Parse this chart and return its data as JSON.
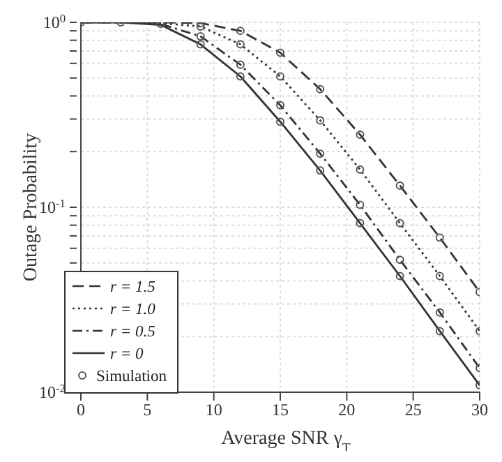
{
  "chart_data": {
    "type": "line",
    "xlabel": "Average SNR γ$_{T}$",
    "ylabel": "Outage Probability",
    "log": "y",
    "grid": true,
    "legend": "bottom left",
    "xlim": [
      0,
      30
    ],
    "xticks": [
      0,
      5,
      10,
      15,
      20,
      25,
      30
    ],
    "ylim": [
      0.01,
      1
    ],
    "yticks": [
      {
        "value": 0.01,
        "label": "10$^{-2}$"
      },
      {
        "value": 0.02,
        "label": null
      },
      {
        "value": 0.03,
        "label": null
      },
      {
        "value": 0.04,
        "label": null
      },
      {
        "value": 0.05,
        "label": null
      },
      {
        "value": 0.06,
        "label": null
      },
      {
        "value": 0.07,
        "label": null
      },
      {
        "value": 0.08,
        "label": null
      },
      {
        "value": 0.09,
        "label": null
      },
      {
        "value": 0.1,
        "label": "10$^{-1}$"
      },
      {
        "value": 0.2,
        "label": null
      },
      {
        "value": 0.3,
        "label": null
      },
      {
        "value": 0.4,
        "label": null
      },
      {
        "value": 0.5,
        "label": null
      },
      {
        "value": 0.6,
        "label": null
      },
      {
        "value": 0.7,
        "label": null
      },
      {
        "value": 0.8,
        "label": null
      },
      {
        "value": 0.9,
        "label": null
      },
      {
        "value": 1,
        "label": "10$^{0}$"
      }
    ],
    "series": [
      {
        "name": "r = 1.5",
        "color": "#333333",
        "line_style": "dashed",
        "x": [
          0,
          3,
          6,
          9,
          12,
          15,
          18,
          21,
          24,
          27,
          30
        ],
        "values": [
          1,
          1,
          1,
          0.99,
          0.9,
          0.685,
          0.435,
          0.247,
          0.131,
          0.0685,
          0.0348
        ]
      },
      {
        "name": "r = 1.0",
        "color": "#333333",
        "line_style": "dotted",
        "x": [
          0,
          3,
          6,
          9,
          12,
          15,
          18,
          21,
          24,
          27,
          30
        ],
        "values": [
          1,
          1,
          0.99,
          0.95,
          0.76,
          0.51,
          0.295,
          0.16,
          0.082,
          0.0425,
          0.0214
        ]
      },
      {
        "name": "r = 0.5",
        "color": "#333333",
        "line_style": "dashdot",
        "x": [
          0,
          3,
          6,
          9,
          12,
          15,
          18,
          21,
          24,
          27,
          30
        ],
        "values": [
          1,
          1,
          0.98,
          0.84,
          0.59,
          0.356,
          0.195,
          0.103,
          0.052,
          0.027,
          0.0135
        ]
      },
      {
        "name": "r = 0",
        "color": "#333333",
        "line_style": "solid",
        "x": [
          0,
          3,
          6,
          9,
          12,
          15,
          18,
          21,
          24,
          27,
          30
        ],
        "values": [
          1,
          1,
          0.97,
          0.76,
          0.51,
          0.29,
          0.158,
          0.082,
          0.0425,
          0.0214,
          0.0109
        ]
      },
      {
        "name": "Simulation",
        "type": "scatter",
        "marker": "circle",
        "color": "#555555",
        "x": [
          0,
          3,
          6,
          9,
          12,
          15,
          18,
          21,
          24,
          27,
          30,
          9,
          12,
          15,
          18,
          21,
          24,
          27,
          30,
          9,
          12,
          15,
          18,
          21,
          24,
          27,
          30,
          9,
          12,
          15,
          18,
          21,
          24,
          27,
          30
        ],
        "values": [
          1,
          1,
          0.98,
          0.99,
          0.9,
          0.685,
          0.435,
          0.247,
          0.131,
          0.0685,
          0.0348,
          0.95,
          0.76,
          0.51,
          0.295,
          0.16,
          0.082,
          0.0425,
          0.0214,
          0.84,
          0.59,
          0.356,
          0.195,
          0.103,
          0.052,
          0.027,
          0.0135,
          0.76,
          0.51,
          0.29,
          0.158,
          0.082,
          0.0425,
          0.0214,
          0.0109
        ]
      }
    ]
  }
}
